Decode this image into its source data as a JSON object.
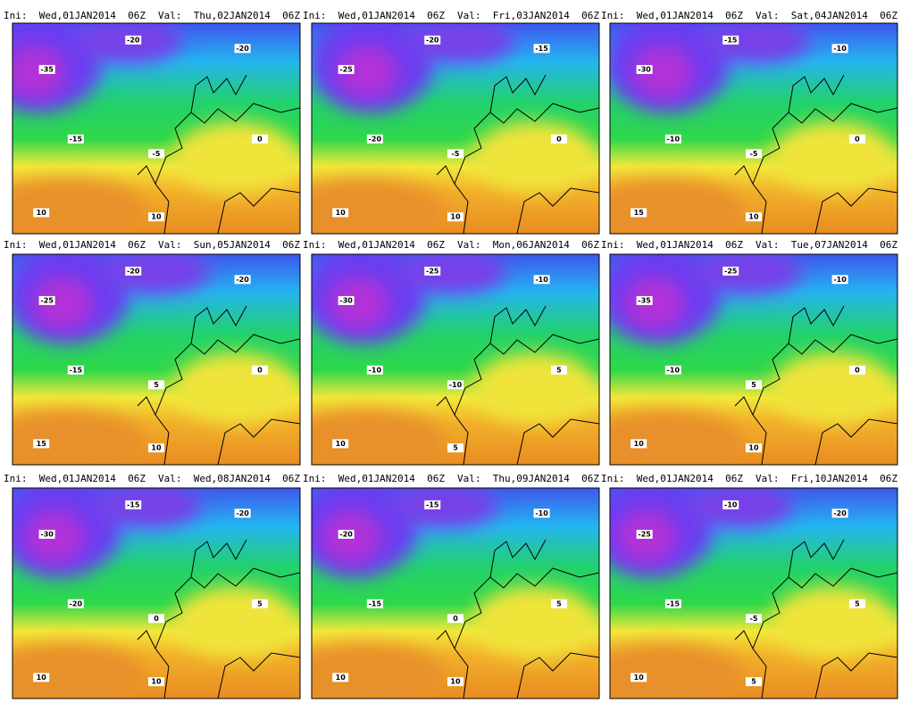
{
  "panels": [
    {
      "init": "Ini:  Wed,01JAN2014  06Z",
      "valid": "Val:  Thu,02JAN2014  06Z",
      "labels": [
        "-35",
        "-20",
        "-20",
        "-15",
        "-5",
        "0",
        "10",
        "10"
      ]
    },
    {
      "init": "Ini:  Wed,01JAN2014  06Z",
      "valid": "Val:  Fri,03JAN2014  06Z",
      "labels": [
        "-25",
        "-20",
        "-15",
        "-20",
        "-5",
        "0",
        "10",
        "10"
      ]
    },
    {
      "init": "Ini:  Wed,01JAN2014  06Z",
      "valid": "Val:  Sat,04JAN2014  06Z",
      "labels": [
        "-30",
        "-15",
        "-10",
        "-10",
        "-5",
        "0",
        "15",
        "10"
      ]
    },
    {
      "init": "Ini:  Wed,01JAN2014  06Z",
      "valid": "Val:  Sun,05JAN2014  06Z",
      "labels": [
        "-25",
        "-20",
        "-20",
        "-15",
        "5",
        "0",
        "15",
        "10"
      ]
    },
    {
      "init": "Ini:  Wed,01JAN2014  06Z",
      "valid": "Val:  Mon,06JAN2014  06Z",
      "labels": [
        "-30",
        "-25",
        "-10",
        "-10",
        "-10",
        "5",
        "10",
        "5"
      ]
    },
    {
      "init": "Ini:  Wed,01JAN2014  06Z",
      "valid": "Val:  Tue,07JAN2014  06Z",
      "labels": [
        "-35",
        "-25",
        "-10",
        "-10",
        "5",
        "0",
        "10",
        "10"
      ]
    },
    {
      "init": "Ini:  Wed,01JAN2014  06Z",
      "valid": "Val:  Wed,08JAN2014  06Z",
      "labels": [
        "-30",
        "-15",
        "-20",
        "-20",
        "0",
        "5",
        "10",
        "10"
      ]
    },
    {
      "init": "Ini:  Wed,01JAN2014  06Z",
      "valid": "Val:  Thu,09JAN2014  06Z",
      "labels": [
        "-20",
        "-15",
        "-10",
        "-15",
        "0",
        "5",
        "10",
        "10"
      ]
    },
    {
      "init": "Ini:  Wed,01JAN2014  06Z",
      "valid": "Val:  Fri,10JAN2014  06Z",
      "labels": [
        "-25",
        "-10",
        "-20",
        "-15",
        "-5",
        "5",
        "10",
        "5"
      ]
    }
  ]
}
